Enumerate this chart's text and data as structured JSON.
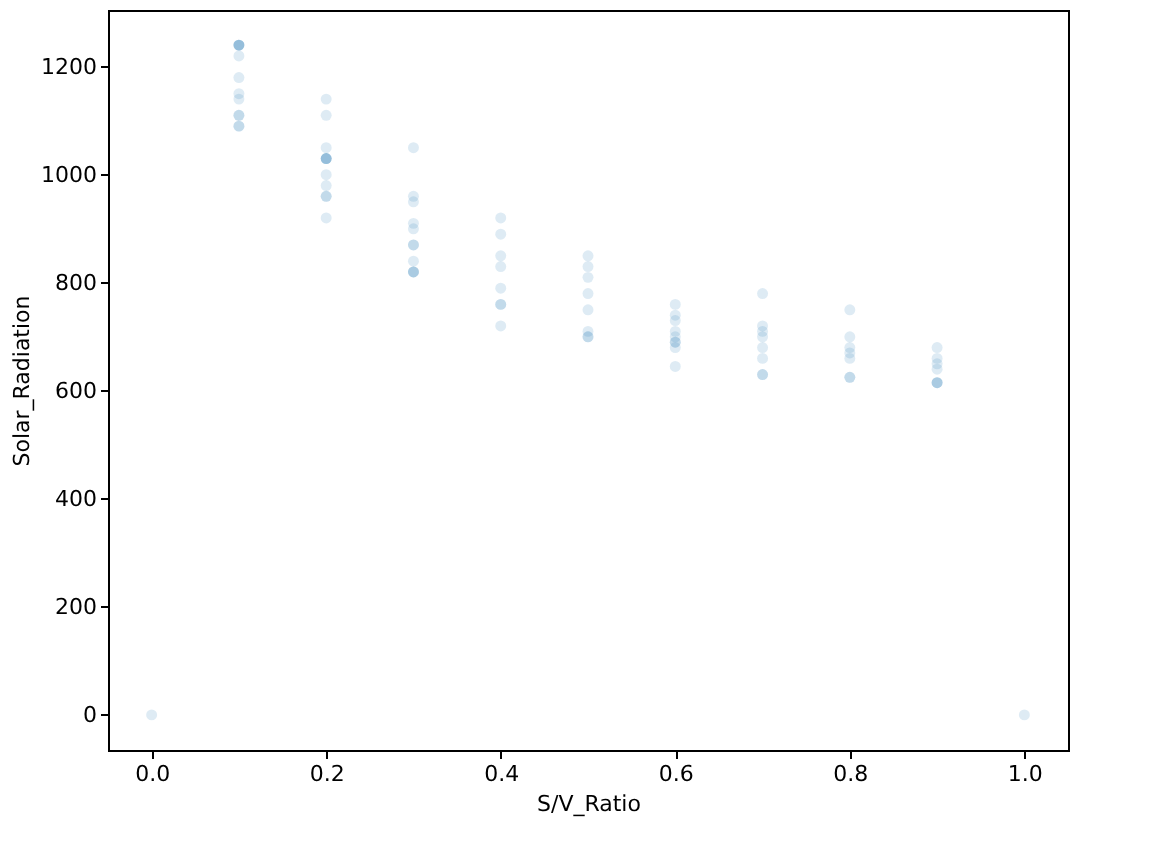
{
  "chart_data": {
    "type": "scatter",
    "xlabel": "S/V_Ratio",
    "ylabel": "Solar_Radiation",
    "x": [
      0.0,
      0.1,
      0.1,
      0.1,
      0.1,
      0.1,
      0.1,
      0.1,
      0.1,
      0.1,
      0.1,
      0.1,
      0.1,
      0.2,
      0.2,
      0.2,
      0.2,
      0.2,
      0.2,
      0.2,
      0.2,
      0.2,
      0.2,
      0.2,
      0.2,
      0.3,
      0.3,
      0.3,
      0.3,
      0.3,
      0.3,
      0.3,
      0.3,
      0.3,
      0.3,
      0.3,
      0.4,
      0.4,
      0.4,
      0.4,
      0.4,
      0.4,
      0.4,
      0.4,
      0.5,
      0.5,
      0.5,
      0.5,
      0.5,
      0.5,
      0.5,
      0.5,
      0.6,
      0.6,
      0.6,
      0.6,
      0.6,
      0.6,
      0.6,
      0.6,
      0.6,
      0.7,
      0.7,
      0.7,
      0.7,
      0.7,
      0.7,
      0.7,
      0.7,
      0.8,
      0.8,
      0.8,
      0.8,
      0.8,
      0.8,
      0.8,
      0.9,
      0.9,
      0.9,
      0.9,
      0.9,
      0.9,
      0.9,
      1.0
    ],
    "series": [
      {
        "color": "#1f77b4",
        "values": [
          0,
          1240,
          1240,
          1240,
          1240,
          1220,
          1180,
          1150,
          1140,
          1110,
          1110,
          1090,
          1090,
          1140,
          1110,
          1050,
          1030,
          1030,
          1030,
          1030,
          1000,
          980,
          960,
          960,
          920,
          1050,
          960,
          950,
          910,
          900,
          870,
          870,
          840,
          820,
          820,
          820,
          920,
          890,
          850,
          830,
          790,
          760,
          760,
          720,
          850,
          830,
          810,
          780,
          750,
          710,
          700,
          700,
          760,
          740,
          730,
          710,
          700,
          690,
          690,
          680,
          645,
          780,
          720,
          710,
          700,
          680,
          660,
          630,
          630,
          750,
          700,
          680,
          670,
          660,
          625,
          625,
          680,
          660,
          650,
          640,
          615,
          615,
          615,
          0
        ]
      }
    ],
    "xlim": [
      -0.05,
      1.05
    ],
    "xticks": [
      {
        "value": 0,
        "label": "0.0"
      },
      0.2,
      0.4,
      0.6,
      0.8,
      {
        "value": 1,
        "label": "1.0"
      }
    ],
    "ylim": [
      -65,
      1305
    ],
    "yticks": [
      0,
      200,
      400,
      600,
      800,
      1000,
      1200
    ],
    "marker": "circle",
    "grid": false,
    "legend": false
  }
}
